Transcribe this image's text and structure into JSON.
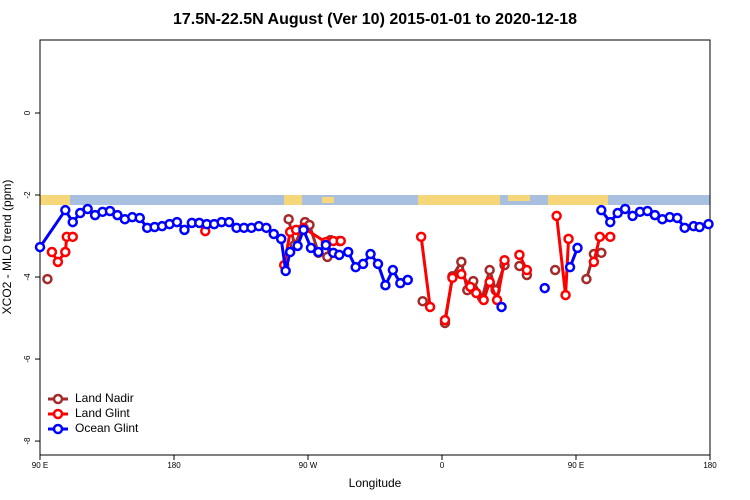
{
  "chart_data": {
    "type": "line",
    "title": "17.5N-22.5N August (Ver 10)   2015-01-01 to 2020-12-18",
    "x_label": "Longitude",
    "y_label": "XCO2 - MLO trend (ppm)",
    "xlim": [
      90,
      540
    ],
    "ylim": [
      -8.34,
      1.78
    ],
    "xticks": [
      {
        "value": 90,
        "label": "90 E"
      },
      {
        "value": 180,
        "label": "180"
      },
      {
        "value": 270,
        "label": "90 W"
      },
      {
        "value": 360,
        "label": "0"
      },
      {
        "value": 450,
        "label": "90 E"
      },
      {
        "value": 540,
        "label": "180"
      }
    ],
    "yticks": [
      0,
      -2,
      -4,
      -6,
      -8
    ],
    "legend": "bottomleft",
    "series": [
      {
        "name": "Land Nadir",
        "color": "#a52a2a",
        "x": [
          95,
          null,
          257,
          261,
          268,
          271,
          277,
          283,
          285,
          291,
          null,
          347,
          null,
          362,
          367,
          373,
          377,
          381,
          387,
          392,
          396,
          402,
          null,
          412,
          417,
          null,
          436,
          null,
          457,
          462,
          467
        ],
        "values": [
          -4.05,
          null,
          -2.59,
          -3.22,
          -2.66,
          -2.73,
          -3.41,
          -3.51,
          -3.1,
          -3.12,
          null,
          -4.59,
          null,
          -5.12,
          -3.98,
          -3.63,
          -4.32,
          -4.1,
          -4.51,
          -3.83,
          -4.32,
          -3.71,
          null,
          -3.73,
          -3.95,
          null,
          -3.83,
          null,
          -4.05,
          -3.44,
          -3.41
        ]
      },
      {
        "name": "Land Glint",
        "color": "#ff0000",
        "x": [
          98,
          102,
          107,
          108,
          112,
          null,
          201,
          null,
          254,
          258,
          262,
          267,
          282,
          287,
          292,
          null,
          346,
          352,
          null,
          362,
          367,
          373,
          379,
          383,
          388,
          392,
          397,
          402,
          null,
          412,
          417,
          null,
          437,
          443,
          445,
          null,
          462,
          466,
          473
        ],
        "values": [
          -3.39,
          -3.63,
          -3.39,
          -3.02,
          -3.02,
          null,
          -2.88,
          null,
          -3.71,
          -2.9,
          -2.85,
          -2.8,
          -3.15,
          -3.12,
          -3.12,
          null,
          -3.02,
          -4.73,
          null,
          -5.05,
          -4.02,
          -3.93,
          -4.24,
          -4.39,
          -4.56,
          -4.12,
          -4.56,
          -3.59,
          null,
          -3.46,
          -3.83,
          null,
          -2.51,
          -4.44,
          -3.07,
          null,
          -3.63,
          -3.02,
          -3.02
        ]
      },
      {
        "name": "Ocean Glint",
        "color": "#0000ff",
        "x": [
          90,
          107,
          112,
          117,
          122,
          127,
          132,
          137,
          142,
          147,
          152,
          157,
          162,
          167,
          172,
          177,
          182,
          187,
          192,
          197,
          202,
          207,
          212,
          217,
          222,
          227,
          232,
          237,
          242,
          247,
          252,
          255,
          258,
          263,
          267,
          272,
          277,
          282,
          287,
          291,
          297,
          302,
          307,
          312,
          317,
          322,
          327,
          332,
          337,
          null,
          400,
          null,
          429,
          null,
          446,
          451,
          null,
          467,
          473,
          478,
          483,
          488,
          493,
          498,
          503,
          508,
          513,
          518,
          523,
          529,
          533,
          539
        ],
        "values": [
          -3.27,
          -2.37,
          -2.66,
          -2.44,
          -2.34,
          -2.49,
          -2.41,
          -2.39,
          -2.49,
          -2.59,
          -2.54,
          -2.56,
          -2.8,
          -2.78,
          -2.76,
          -2.71,
          -2.66,
          -2.85,
          -2.68,
          -2.68,
          -2.71,
          -2.71,
          -2.66,
          -2.66,
          -2.8,
          -2.8,
          -2.8,
          -2.76,
          -2.8,
          -2.95,
          -3.07,
          -3.85,
          -3.39,
          -3.24,
          -2.85,
          -3.29,
          -3.39,
          -3.22,
          -3.41,
          -3.46,
          -3.39,
          -3.76,
          -3.68,
          -3.44,
          -3.68,
          -4.2,
          -3.83,
          -4.15,
          -4.07,
          null,
          -4.73,
          null,
          -4.27,
          null,
          -3.76,
          -3.29,
          null,
          -2.37,
          -2.66,
          -2.44,
          -2.34,
          -2.51,
          -2.41,
          -2.39,
          -2.49,
          -2.59,
          -2.54,
          -2.56,
          -2.8,
          -2.76,
          -2.78,
          -2.71
        ]
      }
    ]
  }
}
